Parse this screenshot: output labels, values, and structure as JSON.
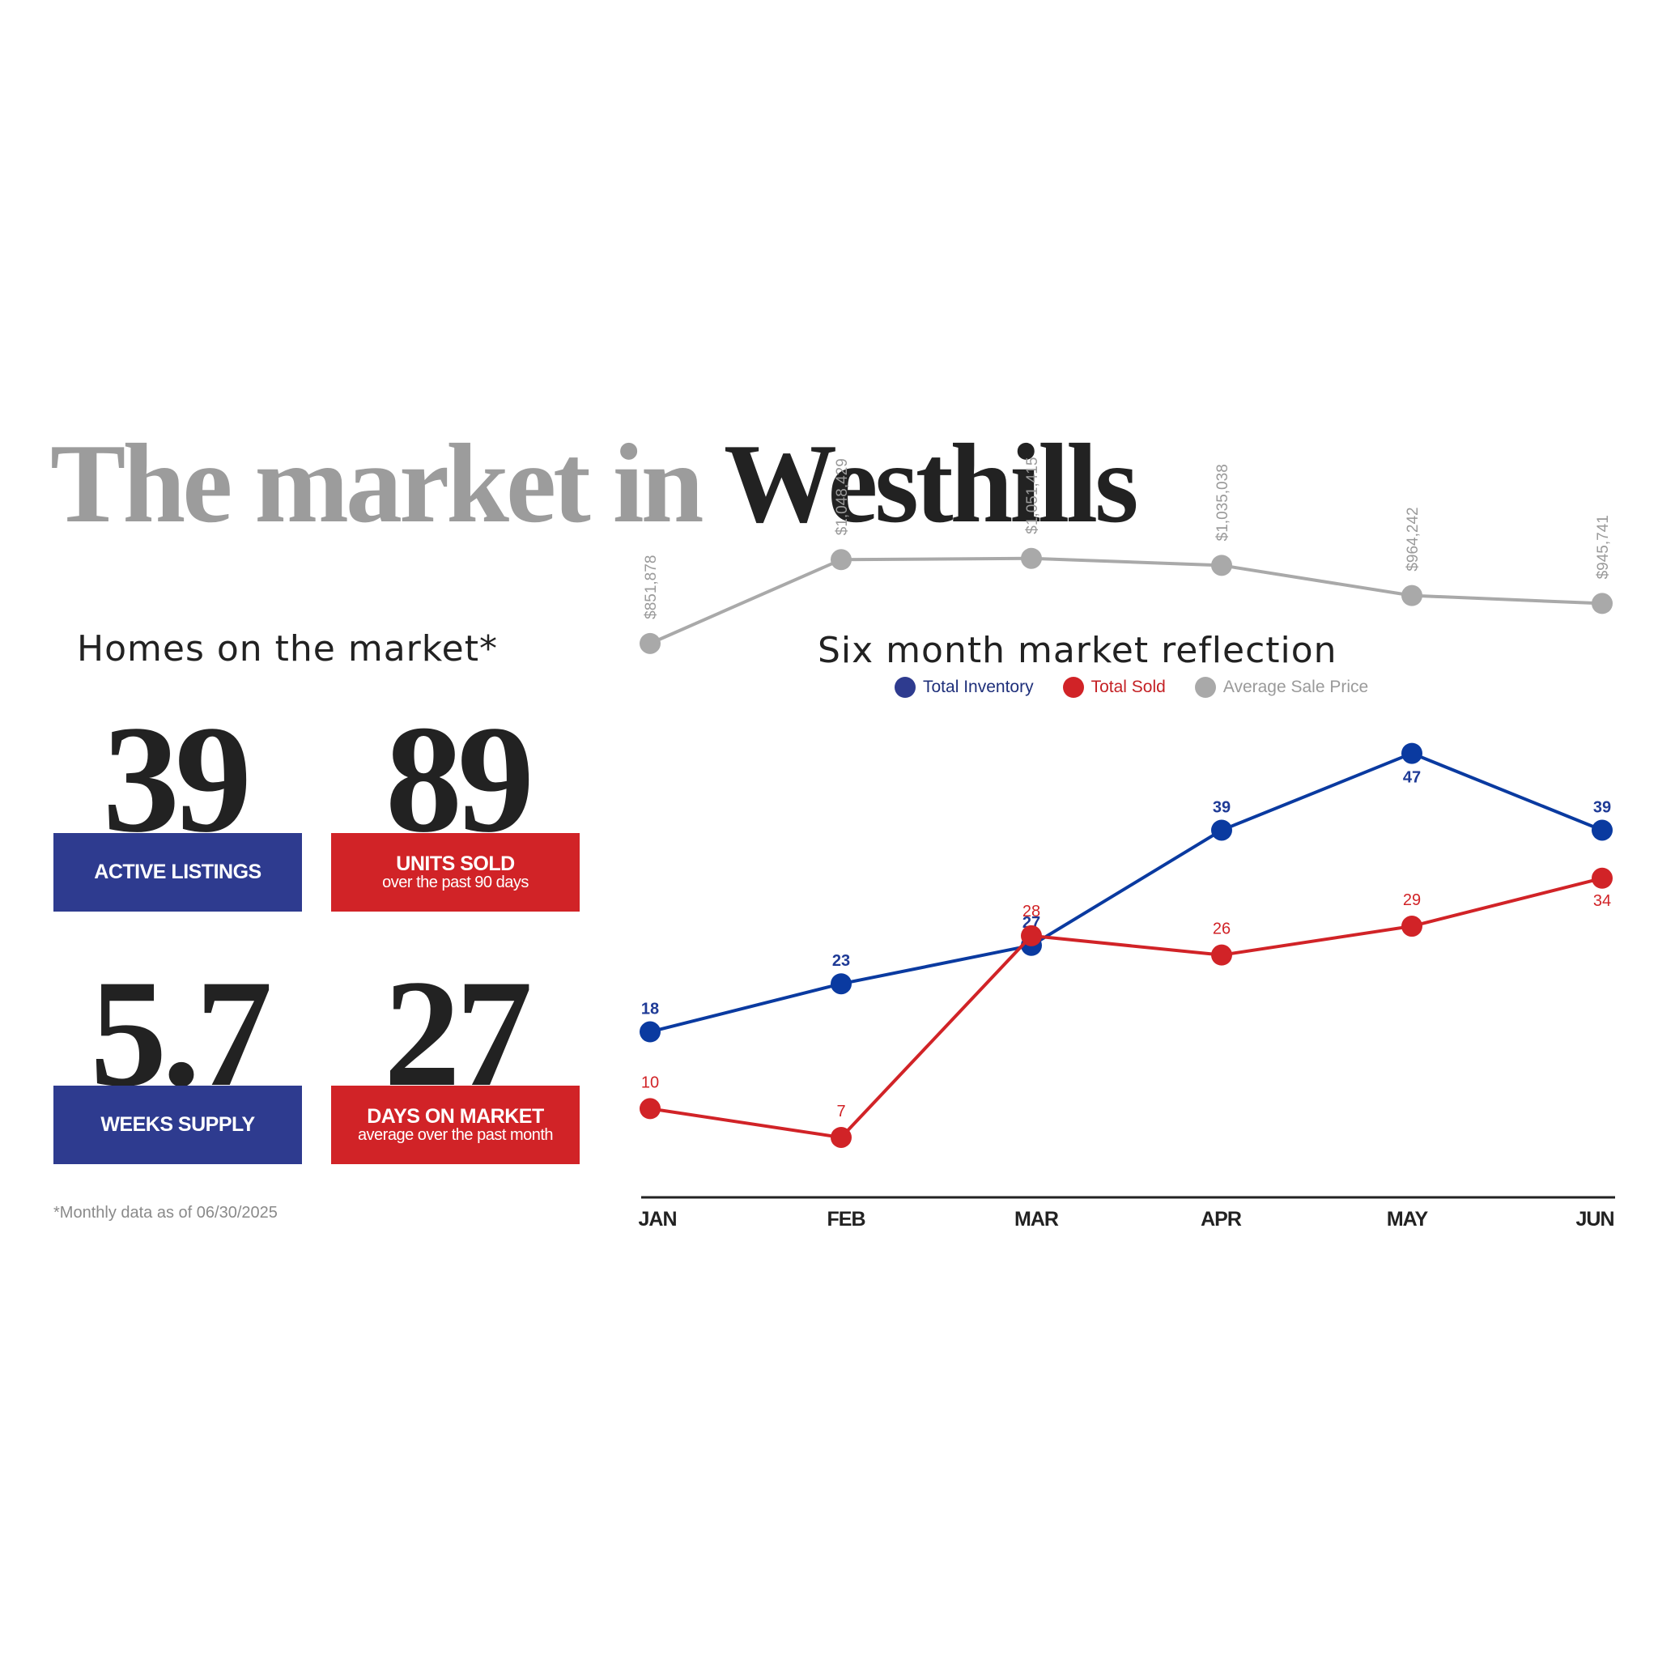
{
  "title": {
    "prefix": "The market in ",
    "place": "Westhills"
  },
  "homes": {
    "heading": "Homes on the market*",
    "stats": [
      {
        "value": "39",
        "label": "ACTIVE LISTINGS",
        "sub": "",
        "color": "#2e3b8f"
      },
      {
        "value": "89",
        "label": "UNITS SOLD",
        "sub": "over the past 90 days",
        "color": "#d12327"
      },
      {
        "value": "5.7",
        "label": "WEEKS SUPPLY",
        "sub": "",
        "color": "#2e3b8f"
      },
      {
        "value": "27",
        "label": "DAYS ON MARKET",
        "sub": "average over the past month",
        "color": "#d12327"
      }
    ],
    "footnote": "*Monthly data as of 06/30/2025"
  },
  "chart_data": {
    "type": "line",
    "title": "Six month market reflection",
    "legend_position": "top-center",
    "grid": false,
    "categories": [
      "JAN",
      "FEB",
      "MAR",
      "APR",
      "MAY",
      "JUN"
    ],
    "series": [
      {
        "name": "Total Inventory",
        "color": "#0a3aa0",
        "values": [
          18,
          23,
          27,
          39,
          47,
          39
        ],
        "labels": [
          "18",
          "23",
          "27",
          "39",
          "47",
          "39"
        ]
      },
      {
        "name": "Total Sold",
        "color": "#d12327",
        "values": [
          10,
          7,
          28,
          26,
          29,
          34
        ],
        "labels": [
          "10",
          "7",
          "28",
          "26",
          "29",
          "34"
        ]
      },
      {
        "name": "Average Sale Price",
        "color": "#a9a9a9",
        "values": [
          851878,
          1048429,
          1051415,
          1035038,
          964242,
          945741
        ],
        "labels": [
          "$851,878",
          "$1,048,429",
          "$1,051,415",
          "$1,035,038",
          "$964,242",
          "$945,741"
        ]
      }
    ]
  }
}
